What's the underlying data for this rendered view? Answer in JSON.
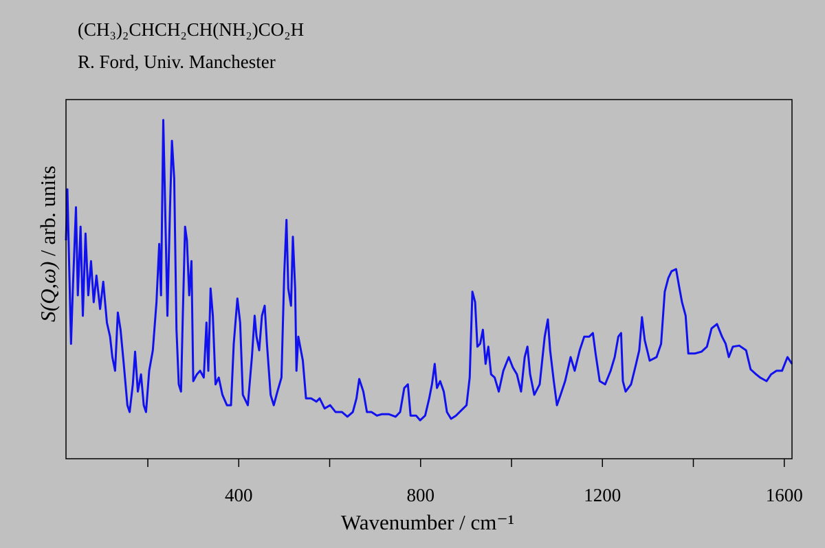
{
  "chart_data": {
    "type": "line",
    "title": "(CH₃)₂CHCH₂CH(NH₂)CO₂H",
    "subtitle": "R. Ford, Univ. Manchester",
    "x_label": "Wavenumber / cm⁻¹",
    "y_label": "S(Q,ω) / arb. units",
    "color": "#1111ee",
    "xlim": [
      20,
      1617
    ],
    "xticks": [
      400,
      800,
      1200,
      1600
    ],
    "xminorticks": [
      200,
      600,
      1000,
      1400
    ],
    "ylim": [
      0,
      100
    ],
    "x": [
      20,
      23,
      26,
      31,
      35,
      42,
      46,
      52,
      57,
      63,
      69,
      75,
      81,
      87,
      95,
      102,
      110,
      117,
      122,
      128,
      134,
      140,
      147,
      155,
      160,
      167,
      172,
      178,
      185,
      191,
      196,
      203,
      211,
      219,
      225,
      229,
      234,
      238,
      243,
      249,
      253,
      258,
      263,
      268,
      273,
      277,
      282,
      286,
      291,
      296,
      300,
      308,
      315,
      323,
      329,
      333,
      338,
      343,
      349,
      356,
      364,
      374,
      383,
      389,
      397,
      403,
      409,
      420,
      429,
      435,
      439,
      445,
      451,
      457,
      462,
      470,
      477,
      485,
      494,
      500,
      505,
      509,
      515,
      519,
      524,
      527,
      531,
      541,
      548,
      559,
      571,
      578,
      589,
      601,
      613,
      627,
      639,
      651,
      659,
      665,
      674,
      682,
      692,
      704,
      715,
      730,
      745,
      755,
      764,
      772,
      778,
      790,
      799,
      810,
      819,
      825,
      831,
      836,
      843,
      851,
      858,
      867,
      878,
      889,
      901,
      908,
      914,
      920,
      925,
      931,
      937,
      943,
      949,
      955,
      963,
      972,
      982,
      994,
      1003,
      1012,
      1021,
      1029,
      1035,
      1041,
      1050,
      1062,
      1073,
      1080,
      1085,
      1093,
      1100,
      1108,
      1118,
      1130,
      1139,
      1150,
      1160,
      1171,
      1179,
      1185,
      1194,
      1206,
      1218,
      1227,
      1235,
      1241,
      1245,
      1251,
      1263,
      1274,
      1281,
      1287,
      1293,
      1304,
      1319,
      1329,
      1337,
      1345,
      1352,
      1362,
      1368,
      1375,
      1383,
      1389,
      1403,
      1418,
      1430,
      1440,
      1452,
      1463,
      1471,
      1478,
      1487,
      1501,
      1516,
      1526,
      1538,
      1547,
      1561,
      1571,
      1583,
      1595,
      1607,
      1617
    ],
    "values": [
      60.8,
      75,
      59,
      32,
      47,
      70,
      45.5,
      64.6,
      39.8,
      62.7,
      45.5,
      55,
      43.6,
      51,
      41.7,
      49.3,
      37.9,
      34,
      28.3,
      24.5,
      40.7,
      36,
      26.4,
      14.9,
      13,
      20.7,
      29.8,
      18.7,
      23.5,
      14.9,
      13,
      24.5,
      30.2,
      43.6,
      59.8,
      45.5,
      94.3,
      70.4,
      39.8,
      70.4,
      88.5,
      78,
      36,
      20.7,
      18.7,
      39.8,
      64.6,
      60.8,
      45.5,
      55,
      21.6,
      23.5,
      24.5,
      22.6,
      37.9,
      24.5,
      47.4,
      39.8,
      20.7,
      22.6,
      17.8,
      14.9,
      14.9,
      32,
      44.6,
      37.9,
      17.8,
      14.9,
      28.3,
      39.8,
      34,
      30.2,
      39.8,
      42.6,
      32,
      17.8,
      14.9,
      18.7,
      22.6,
      51.2,
      66.5,
      47.4,
      42.6,
      61.8,
      47.4,
      24.5,
      34,
      27.3,
      16.8,
      16.8,
      15.9,
      16.8,
      14,
      14.9,
      13,
      13,
      11.7,
      13,
      16.8,
      22.2,
      18.7,
      13,
      13,
      12,
      12.4,
      12.4,
      11.7,
      13,
      19.7,
      20.7,
      12,
      12,
      10.7,
      12,
      16.8,
      20.7,
      26.4,
      19.7,
      21.6,
      18.7,
      13,
      11.1,
      12,
      13.4,
      14.9,
      22.6,
      46.5,
      43.6,
      31.2,
      32,
      35.9,
      26.4,
      31.2,
      23.5,
      22.6,
      18.7,
      24.5,
      28.3,
      25.4,
      23.5,
      18.7,
      28.3,
      31.2,
      23.5,
      17.8,
      20.7,
      34,
      38.8,
      30.2,
      21.6,
      14.9,
      17.8,
      21.6,
      28.3,
      24.5,
      30.2,
      34,
      34,
      35,
      29.3,
      21.6,
      20.7,
      24.5,
      28.3,
      34,
      35,
      21.6,
      18.7,
      20.7,
      26.4,
      30.2,
      39.4,
      33,
      27.3,
      28.3,
      32,
      46.5,
      50.3,
      52.2,
      52.8,
      48.4,
      43.6,
      39.8,
      29.3,
      29.3,
      29.8,
      31.2,
      36.3,
      37.5,
      34,
      32,
      28.3,
      31.2,
      31.5,
      30.2,
      24.9,
      23.5,
      22.6,
      21.6,
      23.5,
      24.5,
      24.5,
      28.3,
      26.4
    ]
  }
}
